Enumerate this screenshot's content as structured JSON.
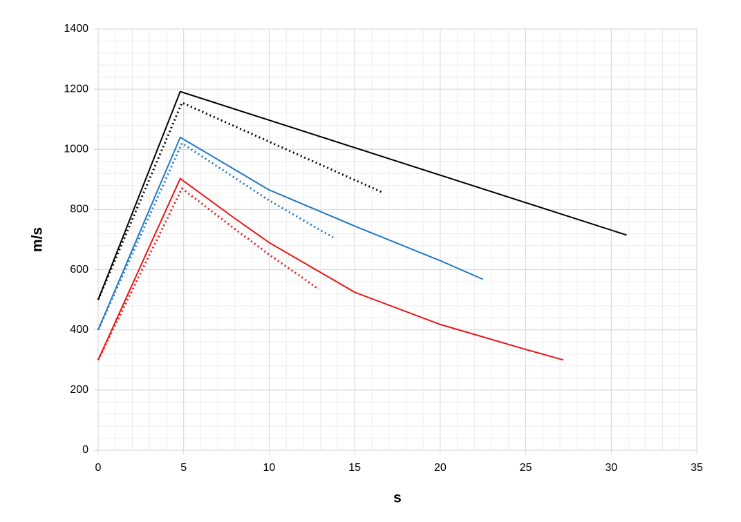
{
  "chart_data": {
    "type": "line",
    "x_label": "s",
    "y_label": "m/s",
    "xlim": [
      0,
      35
    ],
    "xticks": [
      0,
      5,
      10,
      15,
      20,
      25,
      30,
      35
    ],
    "ylim": [
      0,
      1400
    ],
    "yticks": [
      0,
      200,
      400,
      600,
      800,
      1000,
      1200,
      1400
    ],
    "grid": true,
    "minor_grid": true,
    "series": [
      {
        "color": "#000000",
        "style": "solid",
        "x": [
          0,
          4.8,
          30.9
        ],
        "values": [
          500,
          1192,
          715
        ]
      },
      {
        "color": "#000000",
        "style": "dotted",
        "x": [
          0,
          4.9,
          16.7
        ],
        "values": [
          500,
          1155,
          855
        ]
      },
      {
        "color": "#1f77c4",
        "style": "solid",
        "x": [
          0,
          4.8,
          10,
          15,
          20,
          22.5
        ],
        "values": [
          400,
          1040,
          865,
          745,
          630,
          568
        ]
      },
      {
        "color": "#1f77c4",
        "style": "dotted",
        "x": [
          0,
          4.9,
          10,
          13.8
        ],
        "values": [
          400,
          1020,
          830,
          705
        ]
      },
      {
        "color": "#ee1111",
        "style": "solid",
        "x": [
          0,
          4.8,
          8,
          10,
          15,
          20,
          25,
          27.2
        ],
        "values": [
          300,
          903,
          770,
          690,
          525,
          418,
          335,
          300
        ]
      },
      {
        "color": "#ee1111",
        "style": "dotted",
        "x": [
          0,
          4.9,
          8,
          10,
          12.9
        ],
        "values": [
          300,
          870,
          735,
          650,
          535
        ]
      }
    ]
  }
}
